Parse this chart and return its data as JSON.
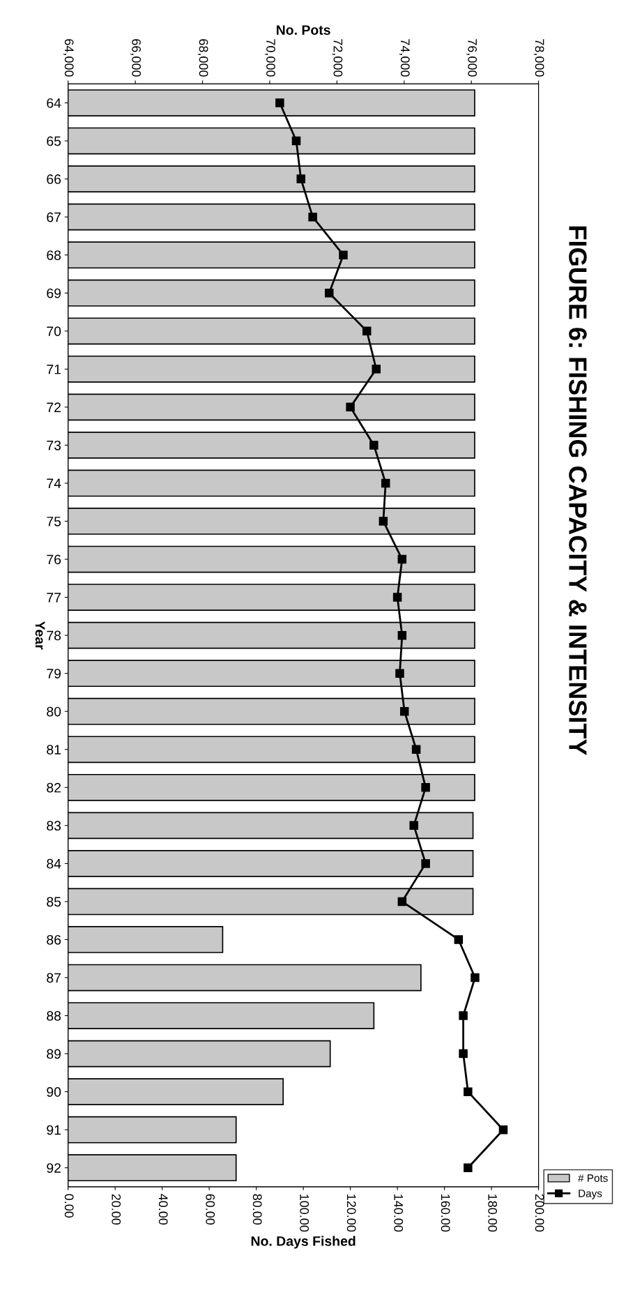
{
  "chart_data": {
    "type": "bar",
    "orientation": "horizontal",
    "title": "FIGURE 6: FISHING CAPACITY & INTENSITY",
    "xlabel": "No. Days Fished",
    "x2label": "No. Pots",
    "ylabel": "Year",
    "categories": [
      "64",
      "65",
      "66",
      "67",
      "68",
      "69",
      "70",
      "71",
      "72",
      "73",
      "74",
      "75",
      "76",
      "77",
      "78",
      "79",
      "80",
      "81",
      "82",
      "83",
      "84",
      "85",
      "86",
      "87",
      "88",
      "89",
      "90",
      "91",
      "92"
    ],
    "series": [
      {
        "name": "# Pots",
        "axis": "x2",
        "color": "#c8c8c8",
        "values": [
          76100,
          76100,
          76100,
          76100,
          76100,
          76100,
          76100,
          76100,
          76100,
          76100,
          76100,
          76100,
          76100,
          76100,
          76100,
          76100,
          76100,
          76100,
          76100,
          76050,
          76050,
          76050,
          68600,
          74500,
          73100,
          71800,
          70400,
          69000,
          69000
        ]
      },
      {
        "name": "Days",
        "type": "line",
        "color": "#000000",
        "values": [
          90,
          97,
          99,
          104,
          117,
          111,
          127,
          131,
          120,
          130,
          135,
          134,
          142,
          140,
          142,
          141,
          143,
          148,
          152,
          147,
          152,
          142,
          166,
          173,
          168,
          168,
          170,
          185,
          170
        ]
      }
    ],
    "xlim": [
      0,
      200
    ],
    "xticks": [
      {
        "value": 0,
        "label": "0.00"
      },
      {
        "value": 20,
        "label": "20.00"
      },
      {
        "value": 40,
        "label": "40.00"
      },
      {
        "value": 60,
        "label": "60.00"
      },
      {
        "value": 80,
        "label": "80.00"
      },
      {
        "value": 100,
        "label": "100.00"
      },
      {
        "value": 120,
        "label": "120.00"
      },
      {
        "value": 140,
        "label": "140.00"
      },
      {
        "value": 160,
        "label": "160.00"
      },
      {
        "value": 180,
        "label": "180.00"
      },
      {
        "value": 200,
        "label": "200.00"
      }
    ],
    "x2lim": [
      64000,
      78000
    ],
    "x2ticks": [
      {
        "value": 64000,
        "label": "64,000"
      },
      {
        "value": 66000,
        "label": "66,000"
      },
      {
        "value": 68000,
        "label": "68,000"
      },
      {
        "value": 70000,
        "label": "70,000"
      },
      {
        "value": 72000,
        "label": "72,000"
      },
      {
        "value": 74000,
        "label": "74,000"
      },
      {
        "value": 76000,
        "label": "76,000"
      },
      {
        "value": 78000,
        "label": "78,000"
      }
    ],
    "marker": "square",
    "line_style": "solid",
    "grid": false,
    "legend": "bottom right"
  }
}
